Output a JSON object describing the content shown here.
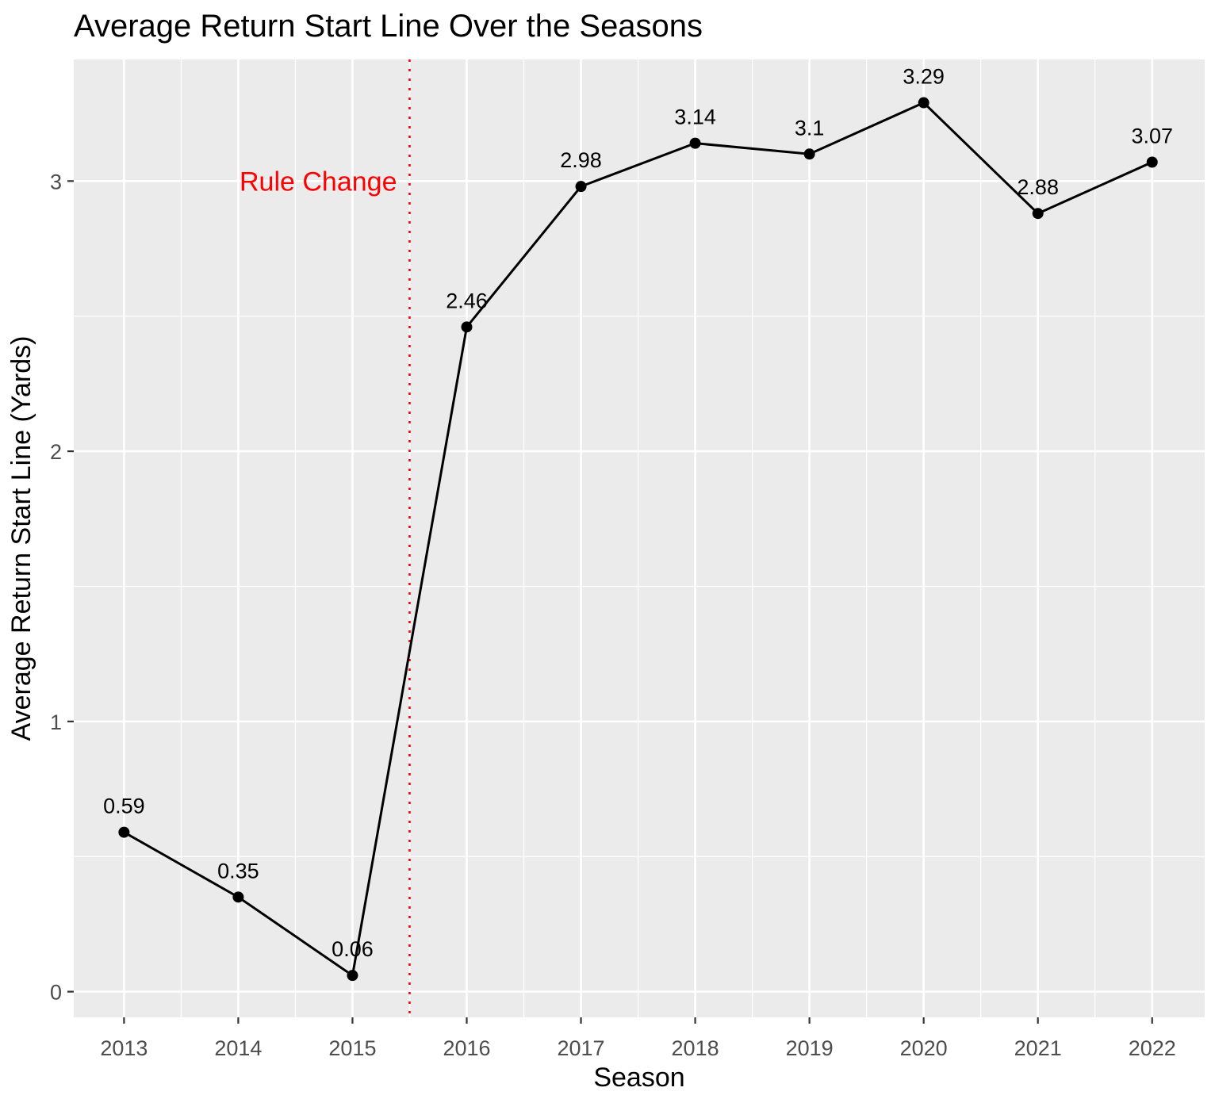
{
  "chart_data": {
    "type": "line",
    "title": "Average Return Start Line Over the Seasons",
    "xlabel": "Season",
    "ylabel": "Average Return Start Line (Yards)",
    "x": [
      2013,
      2014,
      2015,
      2016,
      2017,
      2018,
      2019,
      2020,
      2021,
      2022
    ],
    "series": [
      {
        "values": [
          0.59,
          0.35,
          0.06,
          2.46,
          2.98,
          3.14,
          3.1,
          3.29,
          2.88,
          3.07
        ]
      }
    ],
    "data_labels": [
      "0.59",
      "0.35",
      "0.06",
      "2.46",
      "2.98",
      "3.14",
      "3.1",
      "3.29",
      "2.88",
      "3.07"
    ],
    "x_ticks": [
      "2013",
      "2014",
      "2015",
      "2016",
      "2017",
      "2018",
      "2019",
      "2020",
      "2021",
      "2022"
    ],
    "y_ticks": [
      "0",
      "1",
      "2",
      "3"
    ],
    "y_tick_values": [
      0,
      1,
      2,
      3
    ],
    "xlim": [
      2012.56,
      2022.46
    ],
    "ylim": [
      -0.095,
      3.45
    ],
    "grid": true,
    "legend": "none",
    "annotations": [
      {
        "text": "Rule Change",
        "x": 2014.7,
        "y": 3.0,
        "color": "#ff0000"
      }
    ],
    "reference_lines": [
      {
        "x": 2015.5,
        "color": "#ff0000",
        "style": "dotted"
      }
    ],
    "colors": {
      "panel": "#ebebeb",
      "grid": "#ffffff",
      "line": "#000000",
      "annotation": "#ff0000"
    }
  }
}
